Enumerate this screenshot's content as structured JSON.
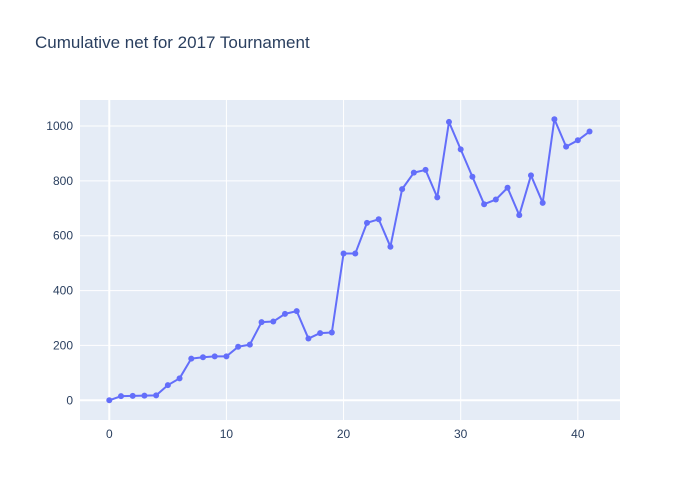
{
  "chart_data": {
    "type": "line",
    "title": "Cumulative net for 2017 Tournament",
    "xlabel": "",
    "ylabel": "",
    "x": [
      0,
      1,
      2,
      3,
      4,
      5,
      6,
      7,
      8,
      9,
      10,
      11,
      12,
      13,
      14,
      15,
      16,
      17,
      18,
      19,
      20,
      21,
      22,
      23,
      24,
      25,
      26,
      27,
      28,
      29,
      30,
      31,
      32,
      33,
      34,
      35,
      36,
      37,
      38,
      39,
      40,
      41
    ],
    "series": [
      {
        "values": [
          0,
          15,
          16,
          17,
          18,
          55,
          80,
          152,
          157,
          160,
          160,
          195,
          203,
          285,
          287,
          315,
          325,
          225,
          245,
          247,
          535,
          535,
          647,
          660,
          560,
          770,
          830,
          840,
          740,
          1015,
          915,
          815,
          715,
          732,
          775,
          675,
          820,
          720,
          1025,
          925,
          948,
          980
        ],
        "markers": true
      }
    ],
    "xlim": [
      -2.5,
      43.6
    ],
    "ylim": [
      -72,
      1095
    ],
    "xticks": [
      0,
      10,
      20,
      30,
      40
    ],
    "yticks": [
      0,
      200,
      400,
      600,
      800,
      1000
    ],
    "grid": true,
    "colors": {
      "line": "#636efa",
      "plot_bg": "#e5ecf6",
      "grid": "#ffffff",
      "text": "#2a3f5f"
    }
  }
}
